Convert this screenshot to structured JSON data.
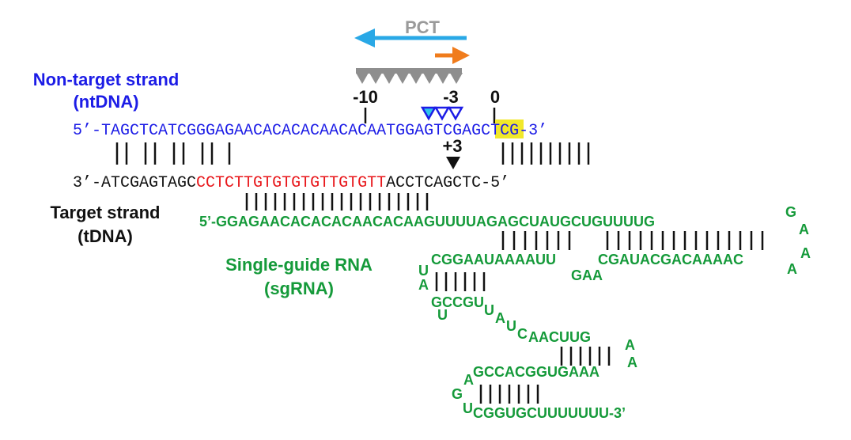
{
  "pct_label": "PCT",
  "nt_label": [
    "Non-target strand",
    "(ntDNA)"
  ],
  "t_label": [
    "Target strand",
    "(tDNA)"
  ],
  "sg_label": [
    "Single-guide RNA",
    "(sgRNA)"
  ],
  "positions": {
    "m10": "-10",
    "m3": "-3",
    "zero": "0",
    "p3": "+3"
  },
  "nt": {
    "prefix": "5’-",
    "pre_pam": "TAGCTCATCGGGAGAACACACACAACACAA",
    "pam": "TGG",
    "post": "AGTCGAGCTCG",
    "suffix": "-3’"
  },
  "t": {
    "prefix": "3’-",
    "pre": "ATCGAGTAGC",
    "protospacer": "CCTCTTGTGTGTGTTGTGTT",
    "post": "ACCTCAGCTC",
    "suffix": "-5’"
  },
  "sg": {
    "line1": "5’-GGAGAACACACACAACACAAGUUUUAGAGCUAUGCUGUUUUG",
    "g_top": "G",
    "a_top": "A",
    "line2a": "CGGAAUAAAAUU",
    "line2b": "CGAUACGACAAAAC",
    "a_right1": "A",
    "a_right2": "A",
    "gaa": "GAA",
    "u_left": "U",
    "a_left": "A",
    "line3": "GCCGU",
    "u_below": "U",
    "loop_u1": "U",
    "loop_a": "A",
    "loop_u2": "U",
    "loop_c": "C",
    "line4": "AACUUG",
    "a_r3": "A",
    "a_r4": "A",
    "a_left5": "A",
    "line5": "GCCACGGUGAAA",
    "g_left": "G",
    "u_left6": "U",
    "line6": "CGGUGCUUUUUUU-3’"
  },
  "colors": {
    "nt": "#1c1ce6",
    "t": "#111111",
    "protospacer": "#e8161a",
    "pam_highlight": "#f1e82a",
    "sgRNA": "#159a3a",
    "pct_arrow": "#29a8e6",
    "orange_arrow": "#f07c1c",
    "triangles_gray": "#8e8e8e",
    "triangles_blue": "#1c1ce6",
    "triangle_cyan": "#2ec5ea"
  }
}
